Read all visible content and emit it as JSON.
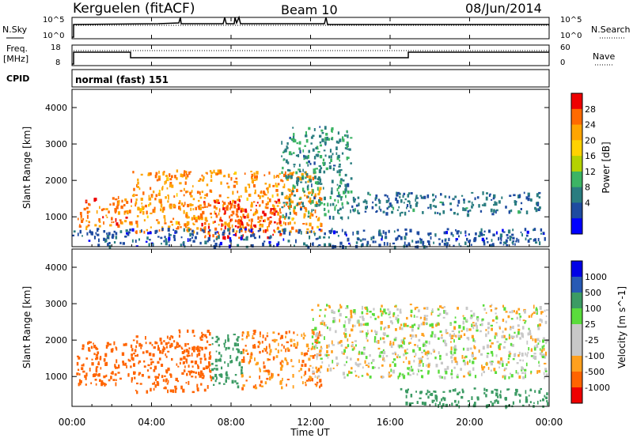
{
  "header": {
    "station": "Kerguelen (fitACF)",
    "beam": "Beam 10",
    "date": "08/Jun/2014"
  },
  "sky_panel": {
    "left_label": "N.Sky",
    "right_label": "N.Search",
    "left_ticks": [
      "10^5",
      "10^0"
    ],
    "right_ticks": [
      "10^5",
      "10^0"
    ]
  },
  "freq_panel": {
    "left_label_top": "Freq.",
    "left_label_bottom": "[MHz]",
    "right_label": "Nave",
    "left_ticks": [
      "18",
      "8"
    ],
    "right_ticks": [
      "60",
      "0"
    ]
  },
  "cpid": {
    "label": "CPID",
    "value": "normal (fast) 151"
  },
  "axes": {
    "ylabel": "Slant Range [km]",
    "xlabel": "Time UT",
    "yticks": [
      "1000",
      "2000",
      "3000",
      "4000"
    ],
    "xticks": [
      "00:00",
      "04:00",
      "08:00",
      "12:00",
      "16:00",
      "20:00",
      "00:00"
    ]
  },
  "colors": {
    "ground_scatter": "#c8c8c8",
    "axis": "#000000"
  },
  "chart_data": [
    {
      "type": "heatmap",
      "quantity": "Power",
      "colorbar_label": "Power [dB]",
      "colorbar_ticks": [
        "28",
        "24",
        "20",
        "16",
        "12",
        "8",
        "4"
      ],
      "colorbar_colors": [
        "#ee0000",
        "#ff6a00",
        "#ffa500",
        "#ffd200",
        "#b4d200",
        "#3cb464",
        "#2a7d80",
        "#1e4ba0",
        "#0000ff"
      ],
      "x_range_hours": [
        0,
        24
      ],
      "y_range_km": [
        180,
        4500
      ],
      "regions": [
        {
          "t": [
            0.2,
            3.0
          ],
          "r": [
            700,
            1600
          ],
          "value": 26
        },
        {
          "t": [
            3.0,
            12.5
          ],
          "r": [
            600,
            2300
          ],
          "value": 24
        },
        {
          "t": [
            6.5,
            10.5
          ],
          "r": [
            450,
            1500
          ],
          "value": 28
        },
        {
          "t": [
            10.5,
            14.0
          ],
          "r": [
            1000,
            3500
          ],
          "value": 10
        },
        {
          "t": [
            14.0,
            23.5
          ],
          "r": [
            1100,
            1700
          ],
          "value": 8
        },
        {
          "t": [
            0,
            24
          ],
          "r": [
            200,
            700
          ],
          "value": 6
        }
      ]
    },
    {
      "type": "heatmap",
      "quantity": "Velocity",
      "colorbar_label": "Velocity [m s^-1]",
      "colorbar_ticks": [
        "1000",
        "500",
        "100",
        "25",
        "-25",
        "-100",
        "-500",
        "-1000"
      ],
      "colorbar_colors": [
        "#0000e6",
        "#285ab4",
        "#3c9b64",
        "#5adc3c",
        "#c8c8c8",
        "#c8c8c8",
        "#ffa01e",
        "#ff6400",
        "#ee0000"
      ],
      "x_range_hours": [
        0,
        24
      ],
      "y_range_km": [
        180,
        4500
      ],
      "regions": [
        {
          "t": [
            0.2,
            3.0
          ],
          "r": [
            800,
            2000
          ],
          "value": -300
        },
        {
          "t": [
            3.0,
            7.0
          ],
          "r": [
            600,
            2300
          ],
          "value": -200
        },
        {
          "t": [
            7.0,
            8.5
          ],
          "r": [
            700,
            2200
          ],
          "value": 150
        },
        {
          "t": [
            8.5,
            12.5
          ],
          "r": [
            700,
            2300
          ],
          "value": -100
        },
        {
          "t": [
            12.0,
            24.0
          ],
          "r": [
            1000,
            3000
          ],
          "value": 0
        },
        {
          "t": [
            16.5,
            24.0
          ],
          "r": [
            200,
            700
          ],
          "value": 150
        }
      ]
    }
  ]
}
